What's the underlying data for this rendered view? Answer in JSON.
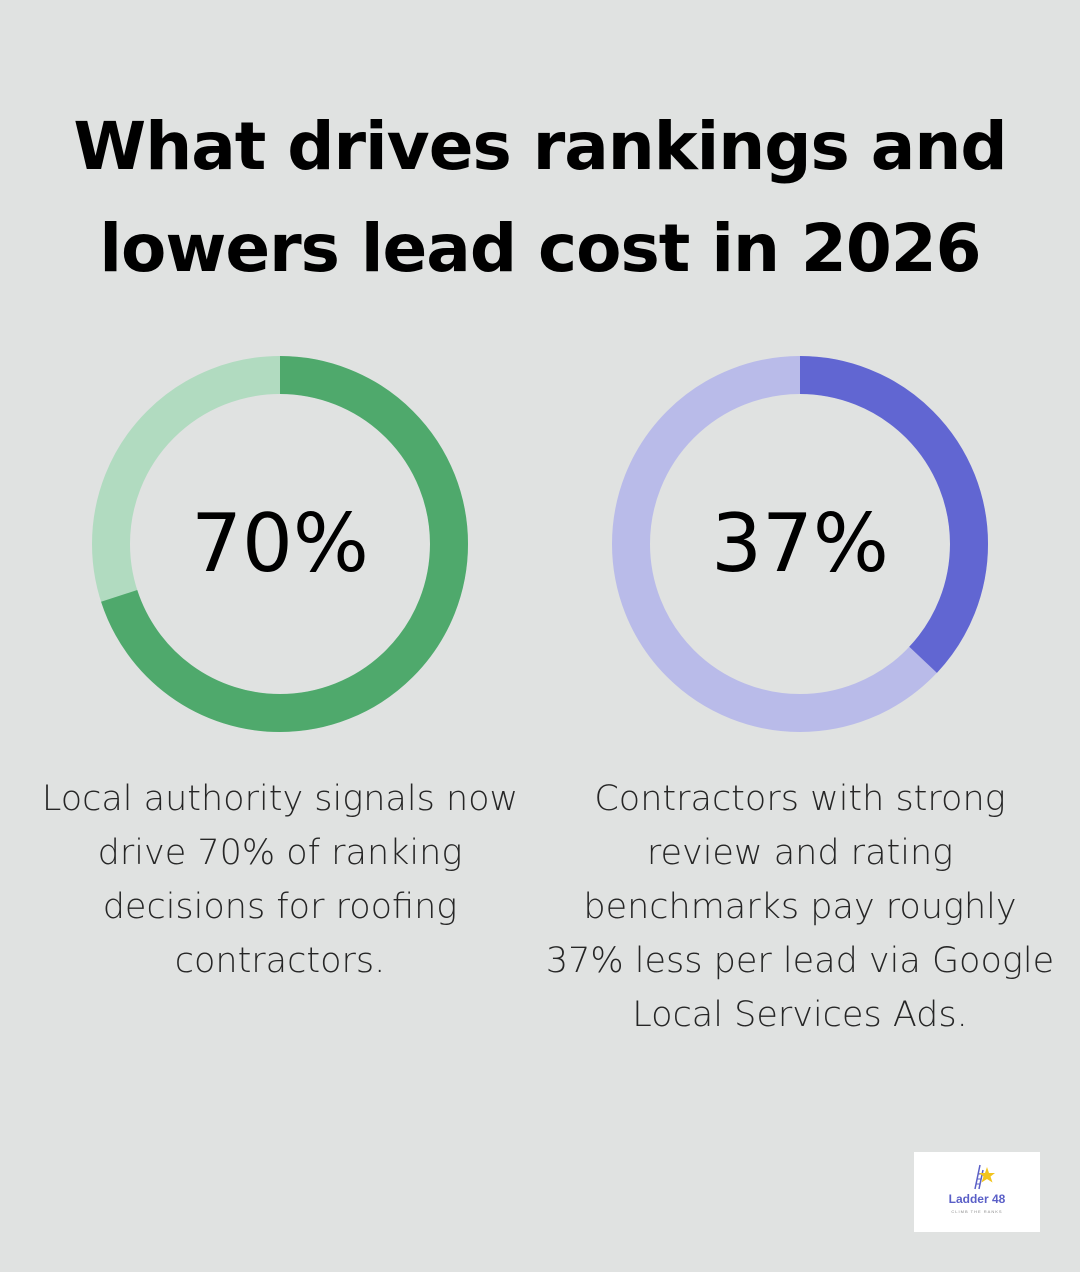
{
  "title_lines": [
    "What drives rankings and",
    "lowers lead cost in 2026"
  ],
  "chart_data": [
    {
      "type": "pie",
      "value": 70,
      "max": 100,
      "label": "70%",
      "caption": "Local authority signals now drive 70% of ranking decisions for roofing contractors.",
      "colors": {
        "filled": "#4fa96c",
        "remaining": "#b1dbc0"
      }
    },
    {
      "type": "pie",
      "value": 37,
      "max": 100,
      "label": "37%",
      "caption": "Contractors with strong review and rating benchmarks pay roughly 37% less per lead via Google Local Services Ads.",
      "colors": {
        "filled": "#6166d2",
        "remaining": "#b9bbe9"
      }
    }
  ],
  "logo": {
    "name": "Ladder 48",
    "tagline": "CLIMB THE RANKS",
    "icon": "ladder-star-icon",
    "colors": {
      "star": "#f2c41d",
      "text": "#5a5fc7"
    }
  }
}
